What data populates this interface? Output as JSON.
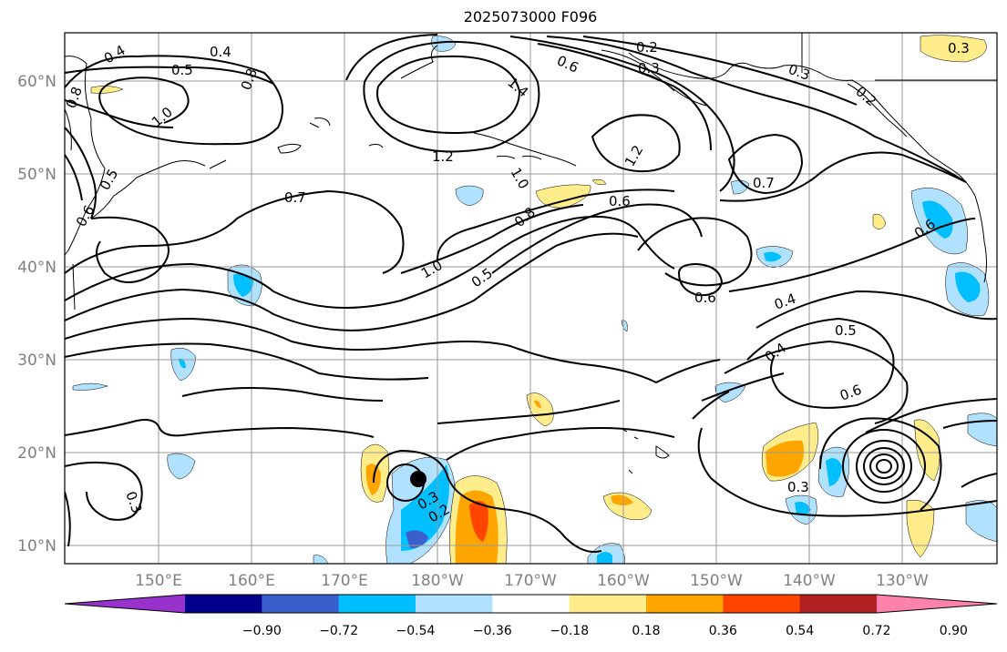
{
  "title": "2025073000 F096",
  "map": {
    "lat_labels": [
      "60°N",
      "50°N",
      "40°N",
      "30°N",
      "20°N",
      "10°N"
    ],
    "lon_labels": [
      "150°E",
      "160°E",
      "170°E",
      "180°W",
      "170°W",
      "160°W",
      "150°W",
      "140°W",
      "130°W"
    ],
    "contour_labels": [
      "0.4",
      "0.4",
      "0.5",
      "0.8",
      "1.0",
      "0.5",
      "0.6",
      "0.8",
      "0.7",
      "1.2",
      "1.4",
      "1.0",
      "0.8",
      "0.6",
      "1.2",
      "0.2",
      "0.3",
      "0.3",
      "0.7",
      "0.6",
      "0.2",
      "1.0",
      "0.5",
      "0.6",
      "0.4",
      "0.5",
      "0.4",
      "0.6",
      "0.3",
      "0.3",
      "0.2",
      "0.3",
      "0.6",
      "0.3"
    ],
    "marker": {
      "name": "storm-center-dot"
    }
  },
  "colorbar": {
    "ticks": [
      "−0.90",
      "−0.72",
      "−0.54",
      "−0.36",
      "−0.18",
      "0.18",
      "0.36",
      "0.54",
      "0.72",
      "0.90"
    ],
    "colors": [
      "#9932cc",
      "#00008b",
      "#3a5fcd",
      "#00bfff",
      "#b0e2ff",
      "#ffffff",
      "#ffec8b",
      "#ffa500",
      "#ff4500",
      "#b22222",
      "#ff82ab"
    ]
  }
}
